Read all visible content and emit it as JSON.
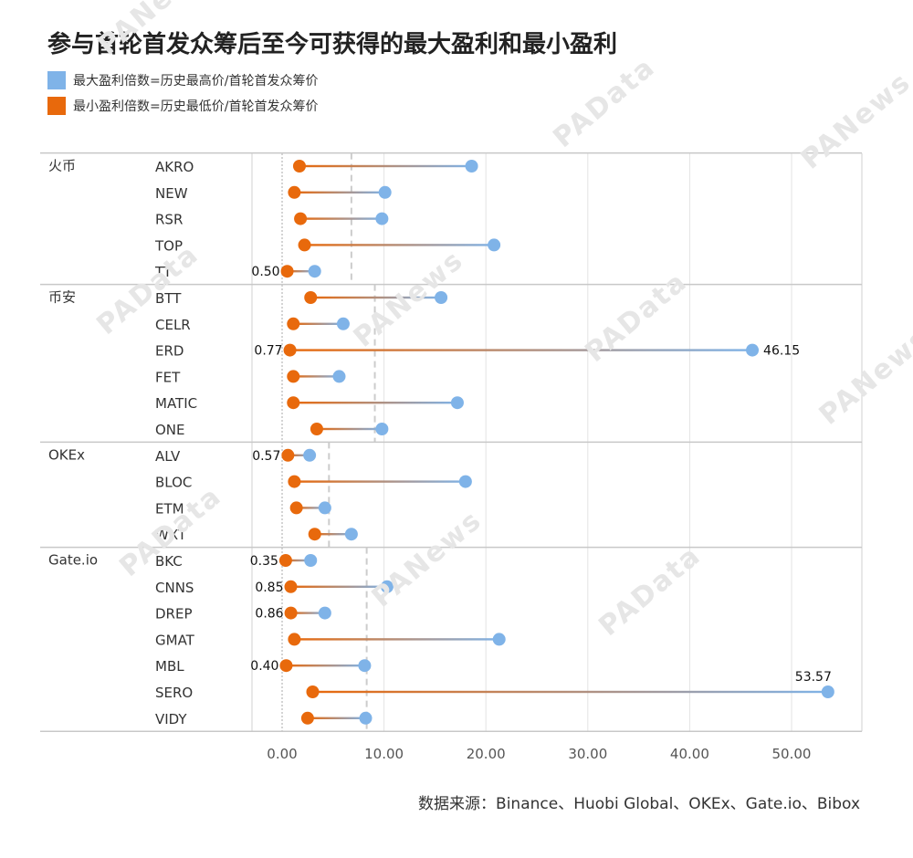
{
  "title": "参与首轮首发众筹后至今可获得的最大盈利和最小盈利",
  "legend": [
    {
      "label": "最大盈利倍数=历史最高价/首轮首发众筹价",
      "color": "#7fb3e8"
    },
    {
      "label": "最小盈利倍数=历史最低价/首轮首发众筹价",
      "color": "#e8690c"
    }
  ],
  "source": "数据来源：Binance、Huobi Global、OKEx、Gate.io、Bibox",
  "watermarks": [
    "PANews",
    "PAData",
    "PANews",
    "PAData",
    "PANews",
    "PAData",
    "PANews",
    "PAData",
    "PANews",
    "PAData"
  ],
  "chart_data": {
    "type": "dumbbell",
    "xlim": [
      -3,
      57
    ],
    "x_ticks": [
      "0.00",
      "10.00",
      "20.00",
      "30.00",
      "40.00",
      "50.00"
    ],
    "x_tick_values": [
      0,
      10,
      20,
      30,
      40,
      50
    ],
    "grid": true,
    "colors": {
      "max": "#7fb3e8",
      "min": "#e8690c"
    },
    "groups": [
      {
        "name": "火币",
        "avg_max": 6.8,
        "rows": [
          {
            "label": "AKRO",
            "min": 1.7,
            "max": 18.6,
            "min_label": "",
            "max_label": ""
          },
          {
            "label": "NEW",
            "min": 1.2,
            "max": 10.1,
            "min_label": "",
            "max_label": ""
          },
          {
            "label": "RSR",
            "min": 1.8,
            "max": 9.8,
            "min_label": "",
            "max_label": ""
          },
          {
            "label": "TOP",
            "min": 2.2,
            "max": 20.8,
            "min_label": "",
            "max_label": ""
          },
          {
            "label": "TT",
            "min": 0.5,
            "max": 3.2,
            "min_label": "0.50",
            "max_label": ""
          }
        ]
      },
      {
        "name": "币安",
        "avg_max": 9.1,
        "rows": [
          {
            "label": "BTT",
            "min": 2.8,
            "max": 15.6,
            "min_label": "",
            "max_label": ""
          },
          {
            "label": "CELR",
            "min": 1.1,
            "max": 6.0,
            "min_label": "",
            "max_label": ""
          },
          {
            "label": "ERD",
            "min": 0.77,
            "max": 46.15,
            "min_label": "0.77",
            "max_label": "46.15"
          },
          {
            "label": "FET",
            "min": 1.1,
            "max": 5.6,
            "min_label": "",
            "max_label": ""
          },
          {
            "label": "MATIC",
            "min": 1.1,
            "max": 17.2,
            "min_label": "",
            "max_label": ""
          },
          {
            "label": "ONE",
            "min": 3.4,
            "max": 9.8,
            "min_label": "",
            "max_label": ""
          }
        ]
      },
      {
        "name": "OKEx",
        "avg_max": 4.6,
        "rows": [
          {
            "label": "ALV",
            "min": 0.57,
            "max": 2.7,
            "min_label": "0.57",
            "max_label": ""
          },
          {
            "label": "BLOC",
            "min": 1.2,
            "max": 18.0,
            "min_label": "",
            "max_label": ""
          },
          {
            "label": "ETM",
            "min": 1.4,
            "max": 4.2,
            "min_label": "",
            "max_label": ""
          },
          {
            "label": "WXT",
            "min": 3.2,
            "max": 6.8,
            "min_label": "",
            "max_label": ""
          }
        ]
      },
      {
        "name": "Gate.io",
        "avg_max": 8.3,
        "rows": [
          {
            "label": "BKC",
            "min": 0.35,
            "max": 2.8,
            "min_label": "0.35",
            "max_label": ""
          },
          {
            "label": "CNNS",
            "min": 0.85,
            "max": 10.3,
            "min_label": "0.85",
            "max_label": ""
          },
          {
            "label": "DREP",
            "min": 0.86,
            "max": 4.2,
            "min_label": "0.86",
            "max_label": ""
          },
          {
            "label": "GMAT",
            "min": 1.2,
            "max": 21.3,
            "min_label": "",
            "max_label": ""
          },
          {
            "label": "MBL",
            "min": 0.4,
            "max": 8.1,
            "min_label": "0.40",
            "max_label": ""
          },
          {
            "label": "SERO",
            "min": 3.0,
            "max": 53.57,
            "min_label": "",
            "max_label": "53.57"
          },
          {
            "label": "VIDY",
            "min": 2.5,
            "max": 8.2,
            "min_label": "",
            "max_label": ""
          }
        ]
      }
    ]
  }
}
